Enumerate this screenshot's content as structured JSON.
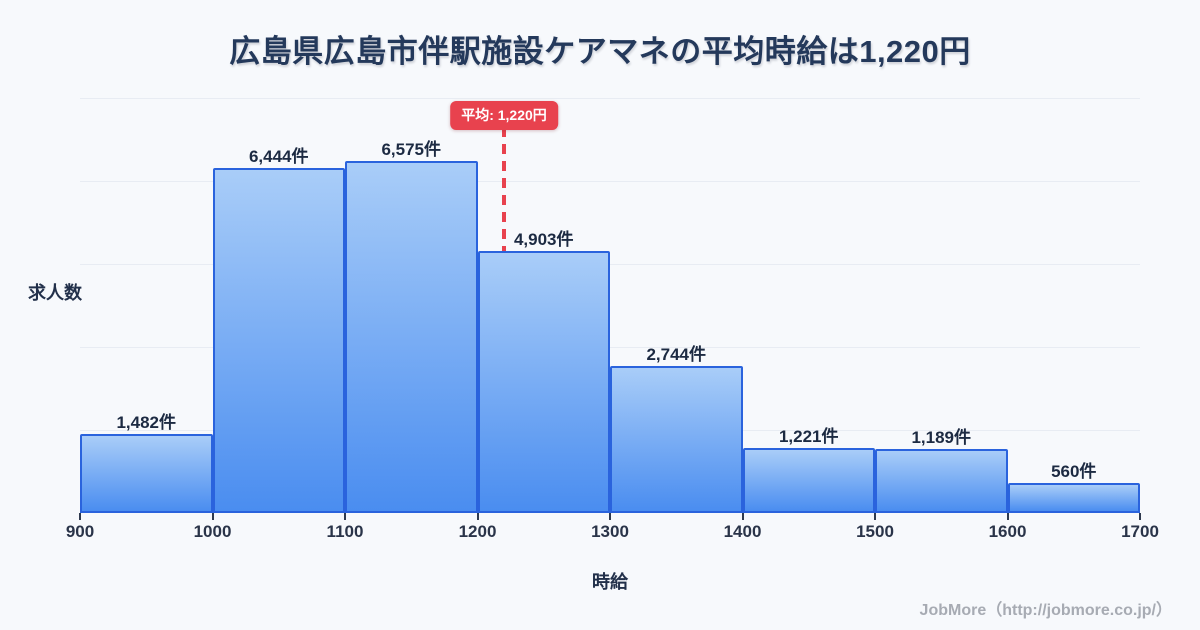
{
  "header": {
    "title": "広島県広島市伴駅施設ケアマネの平均時給は1,220円"
  },
  "chart_data": {
    "type": "bar",
    "subtype": "histogram",
    "xlabel": "時給",
    "ylabel": "求人数",
    "bin_edges": [
      900,
      1000,
      1100,
      1200,
      1300,
      1400,
      1500,
      1600,
      1700
    ],
    "x_tick_labels": [
      "900",
      "1000",
      "1100",
      "1200",
      "1300",
      "1400",
      "1500",
      "1600",
      "1700"
    ],
    "values": [
      1482,
      6444,
      6575,
      4903,
      2744,
      1221,
      1189,
      560
    ],
    "bar_labels": [
      "1,482件",
      "6,444件",
      "6,575件",
      "4,903件",
      "2,744件",
      "1,221件",
      "1,189件",
      "560件"
    ],
    "xlim": [
      900,
      1700
    ],
    "ylim": [
      0,
      6575
    ],
    "grid": "faint horizontal gridlines",
    "legend": "none",
    "average_line": {
      "x": 1220,
      "label": "平均: 1,220円",
      "style": "red dashed vertical line"
    }
  },
  "footer": {
    "credit": "JobMore（http://jobmore.co.jp/）"
  },
  "colors": {
    "background": "#f7f9fc",
    "title_text": "#24395b",
    "bar_gradient_top": "#a9cdf8",
    "bar_gradient_bottom": "#4a8df0",
    "bar_border": "#2a63dd",
    "average_accent": "#e8424e",
    "bar_value_text": "#1c2a42",
    "gridline": "#e8ecf3",
    "footer_text": "#a7abb3"
  }
}
